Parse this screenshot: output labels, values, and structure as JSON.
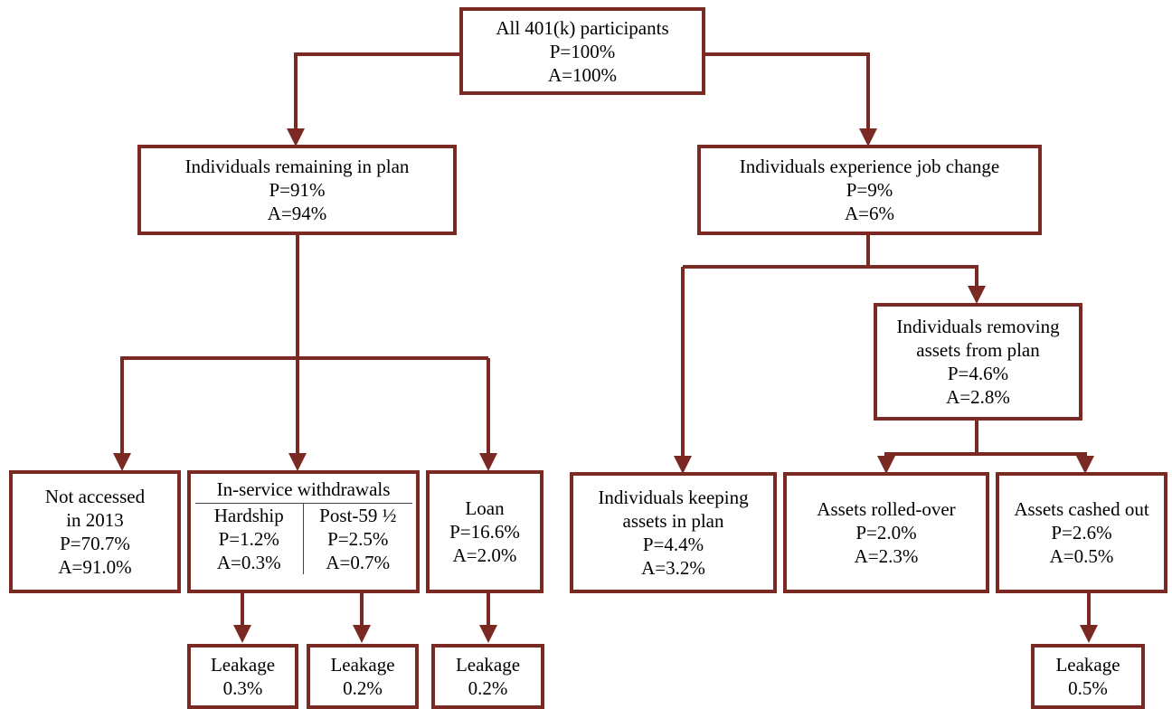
{
  "colors": {
    "border": "#7a2a22",
    "arrow": "#7a2a22"
  },
  "nodes": {
    "root": {
      "title": "All 401(k) participants",
      "p": "P=100%",
      "a": "A=100%"
    },
    "remaining": {
      "title": "Individuals remaining in plan",
      "p": "P=91%",
      "a": "A=94%"
    },
    "job_change": {
      "title": "Individuals experience job change",
      "p": "P=9%",
      "a": "A=6%"
    },
    "removing": {
      "title_line1": "Individuals removing",
      "title_line2": "assets from plan",
      "p": "P=4.6%",
      "a": "A=2.8%"
    },
    "not_accessed": {
      "title_line1": "Not accessed",
      "title_line2": "in 2013",
      "p": "P=70.7%",
      "a": "A=91.0%"
    },
    "in_service": {
      "title": "In-service withdrawals",
      "hardship": {
        "label": "Hardship",
        "p": "P=1.2%",
        "a": "A=0.3%"
      },
      "post59": {
        "label": "Post-59 ½",
        "p": "P=2.5%",
        "a": "A=0.7%"
      }
    },
    "loan": {
      "title": "Loan",
      "p": "P=16.6%",
      "a": "A=2.0%"
    },
    "keeping": {
      "title_line1": "Individuals keeping",
      "title_line2": "assets in plan",
      "p": "P=4.4%",
      "a": "A=3.2%"
    },
    "rolled_over": {
      "title": "Assets rolled-over",
      "p": "P=2.0%",
      "a": "A=2.3%"
    },
    "cashed_out": {
      "title": "Assets cashed out",
      "p": "P=2.6%",
      "a": "A=0.5%"
    }
  },
  "leakages": {
    "hardship": {
      "label": "Leakage",
      "value": "0.3%"
    },
    "post59": {
      "label": "Leakage",
      "value": "0.2%"
    },
    "loan": {
      "label": "Leakage",
      "value": "0.2%"
    },
    "cashed_out": {
      "label": "Leakage",
      "value": "0.5%"
    }
  }
}
